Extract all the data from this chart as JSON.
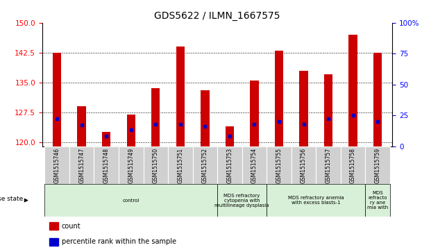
{
  "title": "GDS5622 / ILMN_1667575",
  "samples": [
    "GSM1515746",
    "GSM1515747",
    "GSM1515748",
    "GSM1515749",
    "GSM1515750",
    "GSM1515751",
    "GSM1515752",
    "GSM1515753",
    "GSM1515754",
    "GSM1515755",
    "GSM1515756",
    "GSM1515757",
    "GSM1515758",
    "GSM1515759"
  ],
  "count_values": [
    142.5,
    129.0,
    122.5,
    127.0,
    133.5,
    144.0,
    133.0,
    124.0,
    135.5,
    143.0,
    138.0,
    137.0,
    147.0,
    142.5
  ],
  "percentile_values": [
    22,
    17,
    8,
    13,
    18,
    18,
    16,
    8,
    18,
    20,
    18,
    22,
    25,
    20
  ],
  "ylim_left": [
    119,
    150
  ],
  "ylim_right": [
    0,
    100
  ],
  "yticks_left": [
    120,
    127.5,
    135,
    142.5,
    150
  ],
  "yticks_right": [
    0,
    25,
    50,
    75,
    100
  ],
  "bar_color": "#cc0000",
  "percentile_color": "#0000cc",
  "plot_bg": "#ffffff",
  "tick_bg": "#d0d0d0",
  "disease_groups": [
    {
      "label": "control",
      "start": 0,
      "end": 7,
      "color": "#d8f0d8"
    },
    {
      "label": "MDS refractory\ncytopenia with\nmultilineage dysplasia",
      "start": 7,
      "end": 9,
      "color": "#d8f0d8"
    },
    {
      "label": "MDS refractory anemia\nwith excess blasts-1",
      "start": 9,
      "end": 13,
      "color": "#d8f0d8"
    },
    {
      "label": "MDS\nrefracto\nry ane\nmia with",
      "start": 13,
      "end": 14,
      "color": "#d8f0d8"
    }
  ]
}
